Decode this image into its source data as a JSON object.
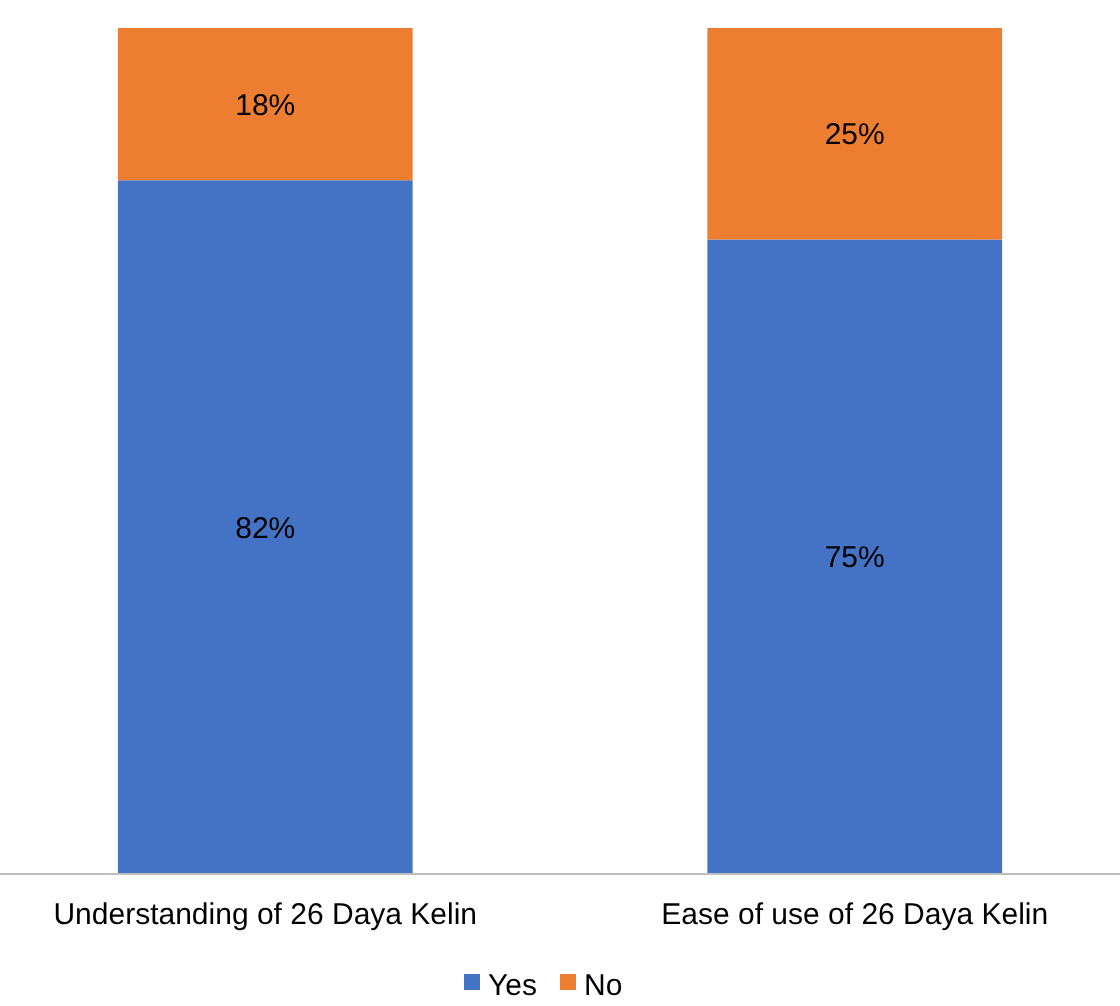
{
  "chart_data": {
    "type": "bar",
    "stacked": true,
    "categories": [
      "Understanding of 26 Daya Kelin",
      "Ease of use of 26 Daya Kelin"
    ],
    "ylim": [
      0,
      100
    ],
    "legend": "bottom",
    "series": [
      {
        "name": "Yes",
        "color": "#4472c4",
        "values": [
          82,
          75
        ],
        "value_labels": [
          "82%",
          "75%"
        ]
      },
      {
        "name": "No",
        "color": "#ed7d31",
        "values": [
          18,
          25
        ],
        "value_labels": [
          "18%",
          "25%"
        ]
      }
    ]
  }
}
